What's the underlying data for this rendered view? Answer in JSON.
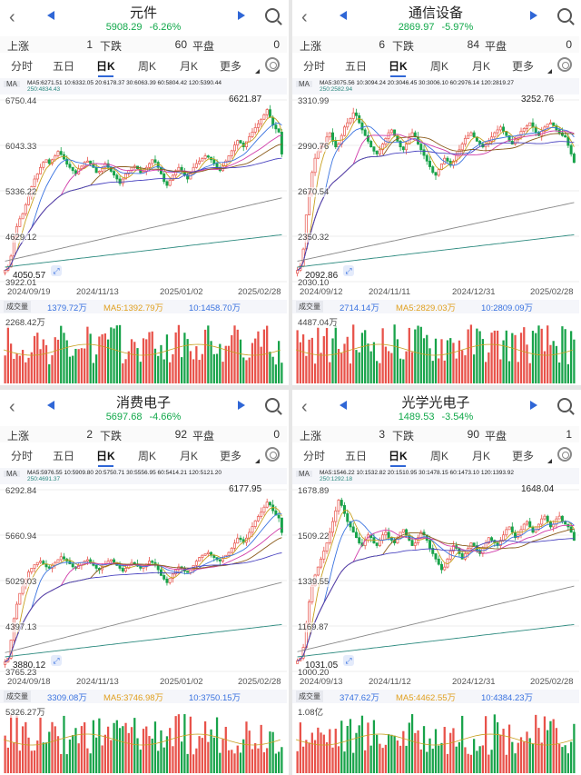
{
  "colors": {
    "up": "#e8524a",
    "down": "#18a34a",
    "accent": "#2f66d6",
    "ma5": "#c8a020",
    "ma10": "#3a73e0",
    "ma20": "#d03aa8",
    "ma30": "#8a5a1a",
    "ma60": "#4a44c0",
    "ma120": "#888888",
    "ma250": "#2c8a7f"
  },
  "icons": {
    "back": "chevron-left-icon",
    "prev": "triangle-left-icon",
    "next": "triangle-right-icon",
    "search": "search-icon",
    "settings": "gear-icon"
  },
  "panels": [
    {
      "title": "元件",
      "price": "5908.29",
      "change": "-6.26%",
      "up_label": "上涨",
      "up": "1",
      "down_label": "下跌",
      "down": "60",
      "flat_label": "平盘",
      "flat": "0",
      "tabs": [
        "分时",
        "五日",
        "日K",
        "周K",
        "月K",
        "更多"
      ],
      "active_tab": 2,
      "ma_badge": "MA",
      "ma_line1": "MA5:6271.51  10:6332.05  20:6178.37  30:6063.39  60:5804.42  120:5390.44",
      "ma_line2": "250:4834.43",
      "y_labels": [
        "6750.44",
        "6043.33",
        "5336.22",
        "4629.12",
        "3922.01"
      ],
      "high_label": "6621.87",
      "low_label": "4050.57",
      "dates": [
        "2024/09/19",
        "2024/11/13",
        "2025/01/02",
        "2025/02/28"
      ],
      "vol_badge": "成交量",
      "vol": "1379.72万",
      "vol_ma5": "MA5:1392.79万",
      "vol_ma10": "10:1458.70万",
      "vol_max": "2268.42万",
      "series": {
        "closes": [
          4100,
          4150,
          4320,
          4620,
          4780,
          4900,
          4980,
          5120,
          5250,
          5400,
          5520,
          5600,
          5700,
          5780,
          5820,
          5760,
          5820,
          5880,
          5950,
          5900,
          5830,
          5750,
          5700,
          5650,
          5600,
          5680,
          5720,
          5780,
          5800,
          5760,
          5700,
          5620,
          5640,
          5700,
          5760,
          5700,
          5640,
          5580,
          5520,
          5450,
          5520,
          5600,
          5650,
          5700,
          5720,
          5680,
          5620,
          5640,
          5700,
          5760,
          5820,
          5780,
          5700,
          5600,
          5480,
          5420,
          5500,
          5580,
          5650,
          5700,
          5640,
          5580,
          5520,
          5600,
          5700,
          5760,
          5800,
          5840,
          5880,
          5860,
          5820,
          5760,
          5700,
          5650,
          5720,
          5800,
          5880,
          5960,
          6050,
          6120,
          6080,
          6020,
          6100,
          6180,
          6250,
          6320,
          6380,
          6450,
          6520,
          6600,
          6480,
          6360,
          6300,
          6250,
          5908
        ]
      }
    },
    {
      "title": "通信设备",
      "price": "2869.97",
      "change": "-5.97%",
      "up_label": "上涨",
      "up": "6",
      "down_label": "下跌",
      "down": "84",
      "flat_label": "平盘",
      "flat": "0",
      "tabs": [
        "分时",
        "五日",
        "日K",
        "周K",
        "月K",
        "更多"
      ],
      "active_tab": 2,
      "ma_badge": "MA",
      "ma_line1": "MA5:3075.56  10:3094.24  20:3046.45  30:3006.10  60:2976.14  120:2819.27",
      "ma_line2": "250:2582.94",
      "y_labels": [
        "3310.99",
        "2990.76",
        "2670.54",
        "2350.32",
        "2030.10"
      ],
      "high_label": "3252.76",
      "low_label": "2092.86",
      "dates": [
        "2024/09/12",
        "2024/11/11",
        "2024/12/31",
        "2025/02/28"
      ],
      "vol_badge": "成交量",
      "vol": "2714.14万",
      "vol_ma5": "MA5:2829.03万",
      "vol_ma10": "10:2809.09万",
      "vol_max": "4487.04万",
      "series": {
        "closes": [
          2110,
          2140,
          2260,
          2500,
          2650,
          2800,
          2900,
          2950,
          2980,
          3000,
          3050,
          3080,
          3020,
          2980,
          3000,
          3060,
          3120,
          3150,
          3180,
          3220,
          3200,
          3150,
          3100,
          3060,
          3020,
          2980,
          2950,
          2930,
          2960,
          3000,
          3040,
          3080,
          3100,
          3060,
          3020,
          2980,
          2960,
          3000,
          3050,
          3080,
          3050,
          3000,
          2960,
          2920,
          2880,
          2840,
          2800,
          2780,
          2820,
          2860,
          2900,
          2880,
          2850,
          2880,
          2920,
          2960,
          3000,
          3040,
          3060,
          3080,
          3050,
          3020,
          3000,
          2980,
          3000,
          3020,
          3050,
          3080,
          3100,
          3120,
          3090,
          3060,
          3020,
          3000,
          3030,
          3060,
          3090,
          3110,
          3130,
          3150,
          3120,
          3080,
          3060,
          3090,
          3120,
          3140,
          3150,
          3130,
          3100,
          3080,
          3060,
          3050,
          2990,
          2930,
          2870
        ]
      }
    },
    {
      "title": "消费电子",
      "price": "5697.68",
      "change": "-4.66%",
      "up_label": "上涨",
      "up": "2",
      "down_label": "下跌",
      "down": "92",
      "flat_label": "平盘",
      "flat": "0",
      "tabs": [
        "分时",
        "五日",
        "日K",
        "周K",
        "月K",
        "更多"
      ],
      "active_tab": 2,
      "ma_badge": "MA",
      "ma_line1": "MA5:5976.55  10:5909.80  20:5750.71  30:5556.95  60:5414.21  120:5121.20",
      "ma_line2": "250:4691.37",
      "y_labels": [
        "6292.84",
        "5660.94",
        "5029.03",
        "4397.13",
        "3765.23"
      ],
      "high_label": "6177.95",
      "low_label": "3880.12",
      "dates": [
        "2024/09/18",
        "2024/11/13",
        "2025/01/02",
        "2025/02/28"
      ],
      "vol_badge": "成交量",
      "vol": "3309.08万",
      "vol_ma5": "MA5:3746.98万",
      "vol_ma10": "10:3750.15万",
      "vol_max": "5326.27万",
      "series": {
        "closes": [
          3900,
          3950,
          4200,
          4500,
          4700,
          4850,
          4950,
          5050,
          5150,
          5200,
          5250,
          5280,
          5300,
          5260,
          5220,
          5200,
          5240,
          5280,
          5320,
          5360,
          5330,
          5300,
          5260,
          5220,
          5200,
          5240,
          5280,
          5300,
          5320,
          5280,
          5240,
          5200,
          5180,
          5220,
          5260,
          5300,
          5320,
          5280,
          5240,
          5200,
          5160,
          5200,
          5240,
          5280,
          5260,
          5230,
          5200,
          5220,
          5260,
          5300,
          5280,
          5240,
          5180,
          5100,
          5050,
          5000,
          5060,
          5120,
          5180,
          5220,
          5200,
          5160,
          5140,
          5180,
          5240,
          5300,
          5350,
          5380,
          5400,
          5420,
          5380,
          5350,
          5320,
          5300,
          5340,
          5380,
          5420,
          5480,
          5550,
          5620,
          5600,
          5560,
          5620,
          5700,
          5780,
          5860,
          5920,
          5980,
          6050,
          6120,
          6080,
          6000,
          5940,
          5900,
          5697
        ]
      }
    },
    {
      "title": "光学光电子",
      "price": "1489.53",
      "change": "-3.54%",
      "up_label": "上涨",
      "up": "3",
      "down_label": "下跌",
      "down": "90",
      "flat_label": "平盘",
      "flat": "1",
      "tabs": [
        "分时",
        "五日",
        "日K",
        "周K",
        "月K",
        "更多"
      ],
      "active_tab": 2,
      "ma_badge": "MA",
      "ma_line1": "MA5:1546.22  10:1532.82  20:1510.95  30:1478.15  60:1473.10  120:1393.92",
      "ma_line2": "250:1292.18",
      "y_labels": [
        "1678.89",
        "1509.22",
        "1339.55",
        "1169.87",
        "1000.20"
      ],
      "high_label": "1648.04",
      "low_label": "1031.05",
      "dates": [
        "2024/09/13",
        "2024/11/12",
        "2024/12/31",
        "2025/02/28"
      ],
      "vol_badge": "成交量",
      "vol": "3747.62万",
      "vol_ma5": "MA5:4462.55万",
      "vol_ma10": "10:4384.23万",
      "vol_max": "1.08亿",
      "series": {
        "closes": [
          1040,
          1050,
          1090,
          1180,
          1260,
          1320,
          1360,
          1390,
          1420,
          1450,
          1480,
          1520,
          1560,
          1600,
          1640,
          1620,
          1590,
          1560,
          1540,
          1520,
          1500,
          1480,
          1470,
          1490,
          1510,
          1500,
          1480,
          1470,
          1490,
          1510,
          1520,
          1500,
          1490,
          1480,
          1500,
          1520,
          1530,
          1510,
          1490,
          1470,
          1480,
          1500,
          1520,
          1510,
          1490,
          1460,
          1440,
          1420,
          1400,
          1380,
          1390,
          1420,
          1450,
          1470,
          1460,
          1440,
          1420,
          1440,
          1460,
          1480,
          1470,
          1450,
          1440,
          1460,
          1480,
          1500,
          1490,
          1480,
          1470,
          1490,
          1510,
          1530,
          1540,
          1520,
          1500,
          1510,
          1530,
          1550,
          1560,
          1540,
          1520,
          1530,
          1550,
          1570,
          1580,
          1560,
          1540,
          1550,
          1570,
          1580,
          1560,
          1550,
          1540,
          1520,
          1490
        ]
      }
    }
  ]
}
